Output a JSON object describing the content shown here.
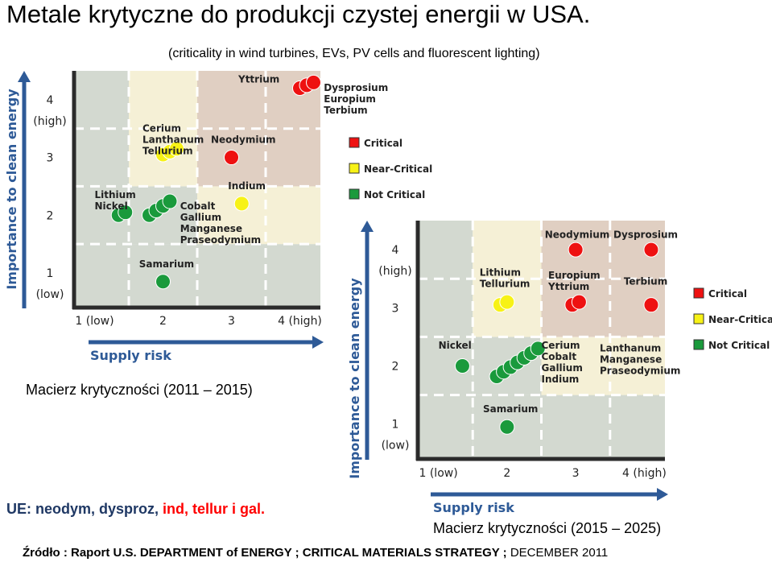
{
  "page": {
    "title": "Metale krytyczne do produkcji czystej energii w USA.",
    "subtitle": "(criticality in wind turbines, EVs, PV cells and fluorescent  lighting)",
    "caption_left": "Macierz  krytyczności  (2011 – 2015)",
    "caption_right": "Macierz  krytyczności  (2015 – 2025)",
    "eu_note_prefix": "UE: neodym, dysproz, ",
    "eu_note_red": "ind, tellur i gal.",
    "source_bold": "Źródło : Raport U.S. DEPARTMENT of ENERGY ;  CRITICAL MATERIALS STRATEGY ;",
    "source_normal": " DECEMBER 2011"
  },
  "colors": {
    "critical": "#ee1111",
    "near_critical": "#f7f216",
    "not_critical": "#1a9a3c",
    "axis_blue": "#2e5a97",
    "zone_green": "#d3d9d0",
    "zone_yellow": "#f5f0d6",
    "zone_red": "#e0cfc2"
  },
  "chart_data": [
    {
      "type": "scatter",
      "id": "matrix-2011-2015",
      "title": "Macierz  krytyczności  (2011 – 2015)",
      "xlabel": "Supply risk",
      "ylabel": "Importance to clean energy",
      "xlim": [
        0.7,
        4.3
      ],
      "ylim": [
        0.4,
        4.5
      ],
      "xticks": [
        "1 (low)",
        "2",
        "3",
        "4 (high)"
      ],
      "yticks": [
        "1\n(low)",
        "2",
        "3",
        "4\n(high)"
      ],
      "legend": [
        {
          "label": "Critical",
          "status": "critical"
        },
        {
          "label": "Near-Critical",
          "status": "near_critical"
        },
        {
          "label": "Not Critical",
          "status": "not_critical"
        }
      ],
      "points": [
        {
          "x": 4.0,
          "y": 4.2,
          "status": "critical",
          "group": "Dysprosium"
        },
        {
          "x": 4.1,
          "y": 4.25,
          "status": "critical",
          "group": "Europium"
        },
        {
          "x": 4.2,
          "y": 4.3,
          "status": "critical",
          "group": "Terbium"
        },
        {
          "x": 3.0,
          "y": 3.0,
          "status": "critical",
          "group": "Neodymium"
        },
        {
          "x": 2.0,
          "y": 3.05,
          "status": "near_critical",
          "group": "Cerium"
        },
        {
          "x": 2.1,
          "y": 3.1,
          "status": "near_critical",
          "group": "Lanthanum"
        },
        {
          "x": 2.2,
          "y": 3.15,
          "status": "near_critical",
          "group": "Tellurium"
        },
        {
          "x": 3.15,
          "y": 2.2,
          "status": "near_critical",
          "group": "Indium"
        },
        {
          "x": 1.35,
          "y": 2.0,
          "status": "not_critical",
          "group": "Lithium"
        },
        {
          "x": 1.45,
          "y": 2.05,
          "status": "not_critical",
          "group": "Nickel"
        },
        {
          "x": 1.8,
          "y": 2.0,
          "status": "not_critical",
          "group": "Cobalt"
        },
        {
          "x": 1.9,
          "y": 2.08,
          "status": "not_critical",
          "group": "Gallium"
        },
        {
          "x": 2.0,
          "y": 2.16,
          "status": "not_critical",
          "group": "Manganese"
        },
        {
          "x": 2.1,
          "y": 2.24,
          "status": "not_critical",
          "group": "Praseodymium"
        },
        {
          "x": 2.0,
          "y": 0.85,
          "status": "not_critical",
          "group": "Samarium"
        }
      ],
      "annotations": [
        {
          "text": "Yttrium",
          "x": 3.1,
          "y": 4.3
        },
        {
          "text": "Dysprosium\nEuropium\nTerbium",
          "x": 4.35,
          "y": 4.15
        },
        {
          "text": "Cerium\nLanthanum\nTellurium",
          "x": 1.7,
          "y": 3.45
        },
        {
          "text": "Neodymium",
          "x": 2.7,
          "y": 3.25
        },
        {
          "text": "Lithium\nNickel",
          "x": 1.0,
          "y": 2.3
        },
        {
          "text": "Indium",
          "x": 2.95,
          "y": 2.45
        },
        {
          "text": "Cobalt\nGallium\nManganese\nPraseodymium",
          "x": 2.25,
          "y": 2.1
        },
        {
          "text": "Samarium",
          "x": 1.65,
          "y": 1.1
        }
      ]
    },
    {
      "type": "scatter",
      "id": "matrix-2015-2025",
      "title": "Macierz  krytyczności  (2015 – 2025)",
      "xlabel": "Supply risk",
      "ylabel": "Importance to clean energy",
      "xlim": [
        0.7,
        4.3
      ],
      "ylim": [
        0.4,
        4.5
      ],
      "xticks": [
        "1 (low)",
        "2",
        "3",
        "4 (high)"
      ],
      "yticks": [
        "1\n(low)",
        "2",
        "3",
        "4\n(high)"
      ],
      "legend": [
        {
          "label": "Critical",
          "status": "critical"
        },
        {
          "label": "Near-Critical",
          "status": "near_critical"
        },
        {
          "label": "Not Critical",
          "status": "not_critical"
        }
      ],
      "points": [
        {
          "x": 3.0,
          "y": 4.0,
          "status": "critical",
          "group": "Neodymium"
        },
        {
          "x": 4.1,
          "y": 4.0,
          "status": "critical",
          "group": "Dysprosium"
        },
        {
          "x": 2.95,
          "y": 3.05,
          "status": "critical",
          "group": "Europium"
        },
        {
          "x": 3.05,
          "y": 3.1,
          "status": "critical",
          "group": "Yttrium"
        },
        {
          "x": 4.1,
          "y": 3.05,
          "status": "critical",
          "group": "Terbium"
        },
        {
          "x": 1.9,
          "y": 3.05,
          "status": "near_critical",
          "group": "Lithium"
        },
        {
          "x": 2.0,
          "y": 3.1,
          "status": "near_critical",
          "group": "Tellurium"
        },
        {
          "x": 1.35,
          "y": 2.0,
          "status": "not_critical",
          "group": "Nickel"
        },
        {
          "x": 1.85,
          "y": 1.82,
          "status": "not_critical",
          "group": "Cerium"
        },
        {
          "x": 1.95,
          "y": 1.9,
          "status": "not_critical",
          "group": "Cobalt"
        },
        {
          "x": 2.05,
          "y": 1.98,
          "status": "not_critical",
          "group": "Gallium"
        },
        {
          "x": 2.15,
          "y": 2.06,
          "status": "not_critical",
          "group": "Indium"
        },
        {
          "x": 2.25,
          "y": 2.14,
          "status": "not_critical",
          "group": "Lanthanum"
        },
        {
          "x": 2.35,
          "y": 2.22,
          "status": "not_critical",
          "group": "Manganese"
        },
        {
          "x": 2.45,
          "y": 2.3,
          "status": "not_critical",
          "group": "Praseodymium"
        },
        {
          "x": 2.0,
          "y": 0.95,
          "status": "not_critical",
          "group": "Samarium"
        }
      ],
      "annotations": [
        {
          "text": "Neodymium",
          "x": 2.55,
          "y": 4.2
        },
        {
          "text": "Dysprosium",
          "x": 3.55,
          "y": 4.2
        },
        {
          "text": "Lithium\nTellurium",
          "x": 1.6,
          "y": 3.55
        },
        {
          "text": "Europium\nYttrium",
          "x": 2.6,
          "y": 3.5
        },
        {
          "text": "Terbium",
          "x": 3.7,
          "y": 3.4
        },
        {
          "text": "Nickel",
          "x": 1.0,
          "y": 2.3
        },
        {
          "text": "Cerium\nCobalt\nGallium\nIndium",
          "x": 2.5,
          "y": 2.3
        },
        {
          "text": "Lanthanum\nManganese\nPraseodymium",
          "x": 3.35,
          "y": 2.25
        },
        {
          "text": "Samarium",
          "x": 1.65,
          "y": 1.2
        }
      ]
    }
  ]
}
